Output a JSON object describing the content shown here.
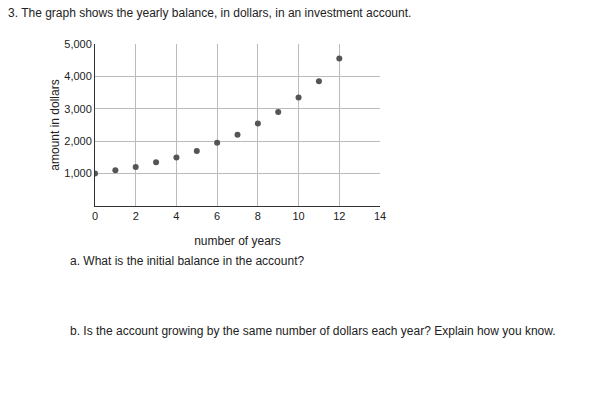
{
  "heading": "3.  The graph shows the yearly balance, in dollars, in an investment account.",
  "questions": [
    {
      "label": "a.",
      "text": "What is the initial balance in the account?"
    },
    {
      "label": "b.",
      "text": "Is the account growing by the same number of dollars each year? Explain how you know."
    }
  ],
  "chart_data": {
    "type": "scatter",
    "x_label": "number of years",
    "y_label": "amount in dollars",
    "x": [
      0,
      1,
      2,
      3,
      4,
      5,
      6,
      7,
      8,
      9,
      10,
      11,
      12
    ],
    "values": [
      1000,
      1100,
      1200,
      1350,
      1500,
      1700,
      1950,
      2200,
      2550,
      2900,
      3350,
      3850,
      4550
    ],
    "color": "#555555",
    "marker": "circle",
    "xlim": [
      0,
      14
    ],
    "xticks": [
      0,
      2,
      4,
      6,
      8,
      10,
      12,
      14
    ],
    "ylim": [
      0,
      5000
    ],
    "yticks": [
      {
        "value": 1000,
        "label": "1,000"
      },
      {
        "value": 2000,
        "label": "2,000"
      },
      {
        "value": 3000,
        "label": "3,000"
      },
      {
        "value": 4000,
        "label": "4,000"
      },
      {
        "value": 5000,
        "label": "5,000"
      }
    ],
    "grid": true
  }
}
